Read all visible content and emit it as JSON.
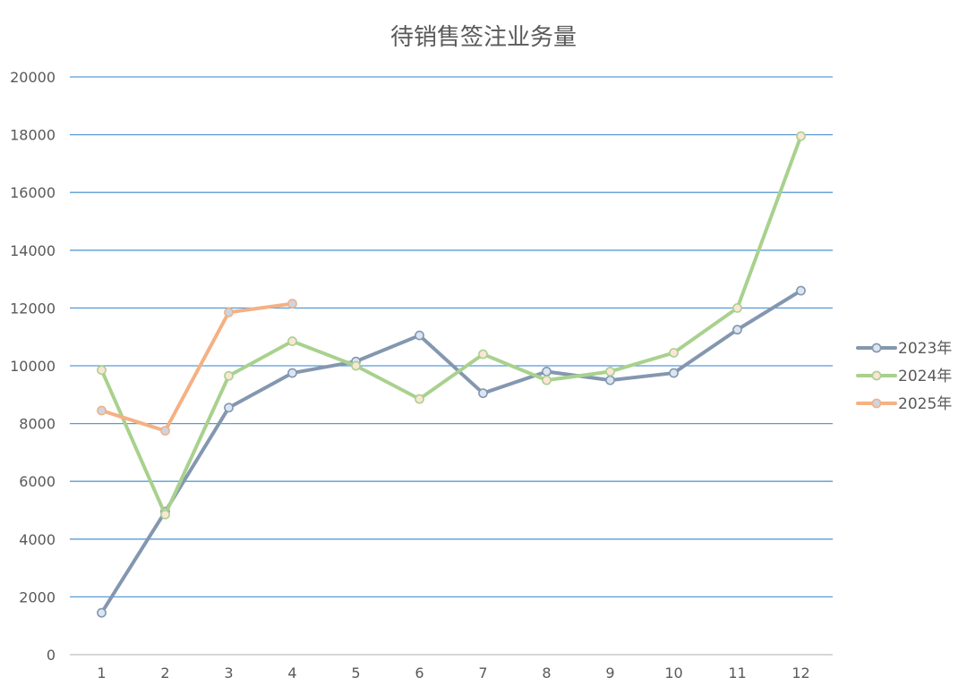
{
  "chart_data": {
    "type": "line",
    "title": "待销售签注业务量",
    "xlabel": "",
    "ylabel": "",
    "categories": [
      "1",
      "2",
      "3",
      "4",
      "5",
      "6",
      "7",
      "8",
      "9",
      "10",
      "11",
      "12"
    ],
    "ylim": [
      0,
      20000
    ],
    "yticks": [
      0,
      2000,
      4000,
      6000,
      8000,
      10000,
      12000,
      14000,
      16000,
      18000,
      20000
    ],
    "grid": true,
    "legend_position": "right",
    "series": [
      {
        "name": "2023年",
        "color": "#8497b0",
        "marker_fill": "#dce6f2",
        "values": [
          1450,
          4950,
          8550,
          9750,
          10150,
          11050,
          9050,
          9800,
          9500,
          9750,
          11250,
          12600
        ]
      },
      {
        "name": "2024年",
        "color": "#a9d18e",
        "marker_fill": "#fce4d6",
        "values": [
          9850,
          4850,
          9650,
          10850,
          10000,
          8850,
          10400,
          9500,
          9800,
          10450,
          12000,
          17950
        ]
      },
      {
        "name": "2025年",
        "color": "#f4b183",
        "marker_fill": "#c9d6e8",
        "values": [
          8450,
          7750,
          11850,
          12150,
          null,
          null,
          null,
          null,
          null,
          null,
          null,
          null
        ]
      }
    ]
  }
}
